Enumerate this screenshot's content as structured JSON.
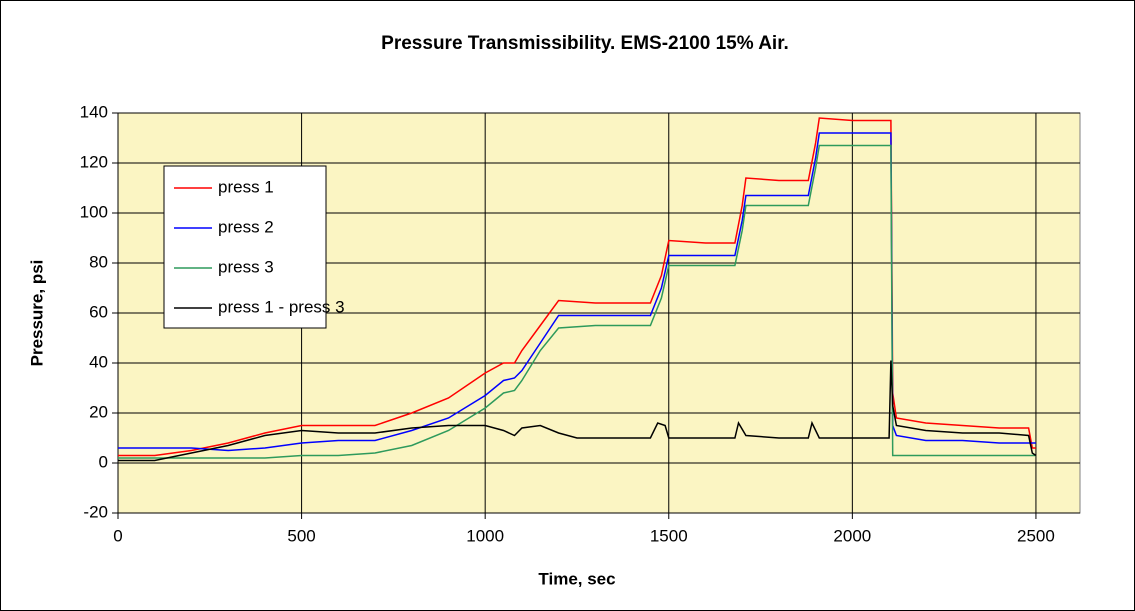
{
  "chart_data": {
    "type": "line",
    "title": "Pressure Transmissibility.  EMS-2100 15% Air.",
    "x_label": "Time, sec",
    "y_label": "Pressure, psi",
    "xlim": [
      0,
      2620
    ],
    "xticks": [
      0,
      500,
      1000,
      1500,
      2000,
      2500
    ],
    "ylim": [
      -20,
      140
    ],
    "yticks": [
      -20,
      0,
      20,
      40,
      60,
      80,
      100,
      120,
      140
    ],
    "grid": true,
    "legend": "upper left",
    "plot_background": "#fbf5c3",
    "series": [
      {
        "name": "press 1",
        "color": "#ff0000",
        "x": [
          0,
          100,
          200,
          300,
          400,
          500,
          600,
          700,
          800,
          900,
          1000,
          1050,
          1080,
          1100,
          1150,
          1200,
          1300,
          1400,
          1450,
          1480,
          1500,
          1600,
          1680,
          1700,
          1710,
          1800,
          1880,
          1900,
          1910,
          2000,
          2100,
          2105,
          2110,
          2120,
          2200,
          2300,
          2400,
          2480,
          2490,
          2500
        ],
        "values": [
          3,
          3,
          5,
          8,
          12,
          15,
          15,
          15,
          20,
          26,
          36,
          40,
          40,
          45,
          55,
          65,
          64,
          64,
          64,
          75,
          89,
          88,
          88,
          103,
          114,
          113,
          113,
          128,
          138,
          137,
          137,
          137,
          28,
          18,
          16,
          15,
          14,
          14,
          6,
          6
        ]
      },
      {
        "name": "press 2",
        "color": "#0000ff",
        "x": [
          0,
          100,
          200,
          300,
          400,
          500,
          600,
          700,
          800,
          900,
          1000,
          1050,
          1080,
          1100,
          1150,
          1200,
          1300,
          1400,
          1450,
          1480,
          1500,
          1600,
          1680,
          1700,
          1710,
          1800,
          1880,
          1900,
          1910,
          2000,
          2100,
          2105,
          2110,
          2120,
          2200,
          2300,
          2400,
          2480,
          2490,
          2500
        ],
        "values": [
          6,
          6,
          6,
          5,
          6,
          8,
          9,
          9,
          13,
          18,
          27,
          33,
          34,
          37,
          48,
          59,
          59,
          59,
          59,
          70,
          83,
          83,
          83,
          97,
          107,
          107,
          107,
          122,
          132,
          132,
          132,
          132,
          15,
          11,
          9,
          9,
          8,
          8,
          8,
          8
        ]
      },
      {
        "name": "press 3",
        "color": "#2e9a5c",
        "x": [
          0,
          100,
          200,
          300,
          400,
          500,
          600,
          700,
          800,
          900,
          1000,
          1050,
          1080,
          1100,
          1150,
          1200,
          1300,
          1400,
          1450,
          1480,
          1500,
          1600,
          1680,
          1700,
          1710,
          1800,
          1880,
          1900,
          1910,
          2000,
          2100,
          2105,
          2110,
          2120,
          2200,
          2300,
          2400,
          2480,
          2490,
          2500
        ],
        "values": [
          2,
          2,
          2,
          2,
          2,
          3,
          3,
          4,
          7,
          13,
          22,
          28,
          29,
          33,
          45,
          54,
          55,
          55,
          55,
          66,
          79,
          79,
          79,
          93,
          103,
          103,
          103,
          118,
          127,
          127,
          127,
          127,
          3,
          3,
          3,
          3,
          3,
          3,
          3,
          3
        ]
      },
      {
        "name": "press 1 - press 3",
        "color": "#000000",
        "x": [
          0,
          100,
          200,
          300,
          400,
          500,
          600,
          700,
          800,
          900,
          1000,
          1050,
          1080,
          1100,
          1150,
          1200,
          1250,
          1300,
          1400,
          1450,
          1470,
          1490,
          1500,
          1600,
          1680,
          1690,
          1710,
          1800,
          1880,
          1890,
          1910,
          2000,
          2100,
          2105,
          2110,
          2120,
          2200,
          2300,
          2400,
          2480,
          2490,
          2500
        ],
        "values": [
          1,
          1,
          4,
          7,
          11,
          13,
          12,
          12,
          14,
          15,
          15,
          13,
          11,
          14,
          15,
          12,
          10,
          10,
          10,
          10,
          16,
          15,
          10,
          10,
          10,
          16,
          11,
          10,
          10,
          16,
          10,
          10,
          10,
          41,
          23,
          15,
          13,
          12,
          12,
          11,
          4,
          3
        ]
      }
    ]
  }
}
